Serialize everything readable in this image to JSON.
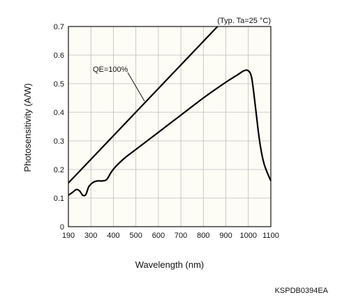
{
  "chart_data": {
    "type": "line",
    "xlabel": "Wavelength (nm)",
    "ylabel": "Photosensitivity (A/W)",
    "xlim": [
      190,
      1100
    ],
    "ylim": [
      0,
      0.7
    ],
    "x_ticks": [
      "190",
      "300",
      "400",
      "500",
      "600",
      "700",
      "800",
      "900",
      "1000",
      "1100"
    ],
    "y_ticks": [
      "0",
      "0.1",
      "0.2",
      "0.3",
      "0.4",
      "0.5",
      "0.6",
      "0.7"
    ],
    "grid": true,
    "condition_note": "(Typ. Ta=25 °C)",
    "series": [
      {
        "name": "QE=100%",
        "x": [
          190,
          863
        ],
        "y": [
          0.153,
          0.7
        ]
      },
      {
        "name": "",
        "x": [
          190,
          210,
          230,
          245,
          260,
          275,
          290,
          310,
          330,
          350,
          370,
          390,
          410,
          450,
          500,
          600,
          700,
          800,
          900,
          950,
          980,
          1000,
          1015,
          1030,
          1050,
          1070,
          1100
        ],
        "y": [
          0.11,
          0.12,
          0.13,
          0.125,
          0.11,
          0.112,
          0.14,
          0.155,
          0.16,
          0.16,
          0.165,
          0.19,
          0.21,
          0.24,
          0.27,
          0.33,
          0.39,
          0.45,
          0.505,
          0.53,
          0.545,
          0.545,
          0.52,
          0.43,
          0.3,
          0.22,
          0.16
        ]
      }
    ]
  },
  "figure_code": "KSPDB0394EA"
}
